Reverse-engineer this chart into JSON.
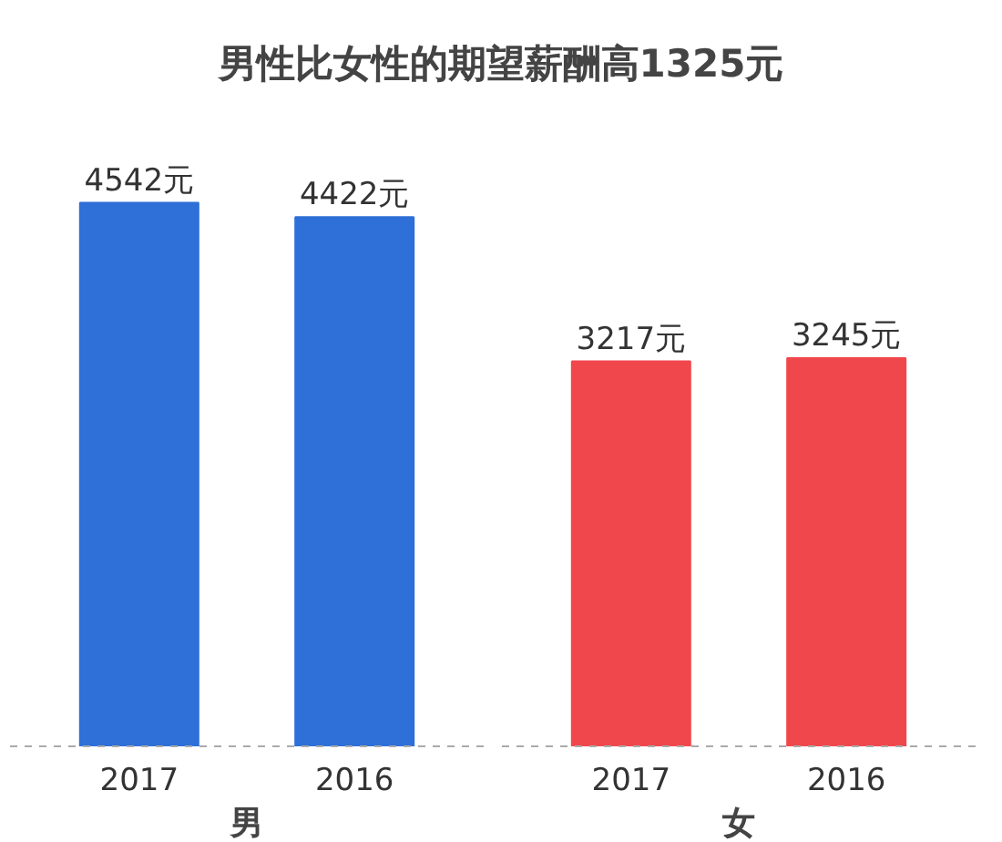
{
  "chart_data": [
    {
      "type": "bar",
      "title": "男性比女性的期望薪酬高1325元",
      "xlabel": "男",
      "categories": [
        "2017",
        "2016"
      ],
      "values": [
        4542,
        4422
      ],
      "value_labels": [
        "4542元",
        "4422元"
      ],
      "color": "#2e6fd8"
    },
    {
      "type": "bar",
      "xlabel": "女",
      "categories": [
        "2017",
        "2016"
      ],
      "values": [
        3217,
        3245
      ],
      "value_labels": [
        "3217元",
        "3245元"
      ],
      "color": "#f0474c"
    }
  ]
}
